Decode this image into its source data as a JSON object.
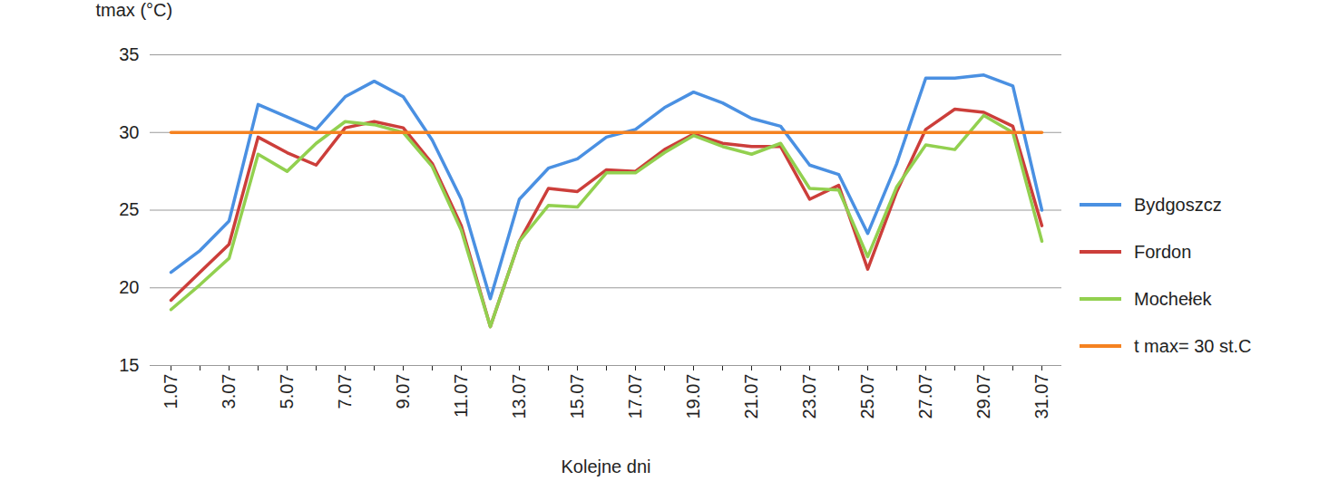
{
  "chart_data": {
    "type": "line",
    "x_label": "Kolejne dni",
    "y_label": "tmax (°C)",
    "categories": [
      "1.07",
      null,
      "3.07",
      null,
      "5.07",
      null,
      "7.07",
      null,
      "9.07",
      null,
      "11.07",
      null,
      "13.07",
      null,
      "15.07",
      null,
      "17.07",
      null,
      "19.07",
      null,
      "21.07",
      null,
      "23.07",
      null,
      "25.07",
      null,
      "27.07",
      null,
      "29.07",
      null,
      "31.07"
    ],
    "series": [
      {
        "name": "Bydgoszcz",
        "color": "#4a90e2",
        "values": [
          21,
          22.4,
          24.3,
          31.8,
          31,
          30.2,
          32.3,
          33.3,
          32.3,
          29.5,
          25.7,
          19.3,
          25.7,
          27.7,
          28.3,
          29.7,
          30.2,
          31.6,
          32.6,
          31.9,
          30.9,
          30.4,
          27.9,
          27.3,
          23.5,
          28,
          33.5,
          33.5,
          33.7,
          33,
          25
        ]
      },
      {
        "name": "Fordon",
        "color": "#cc3e3a",
        "values": [
          19.2,
          21,
          22.8,
          29.7,
          28.7,
          27.9,
          30.3,
          30.7,
          30.3,
          28,
          24,
          17.5,
          23,
          26.4,
          26.2,
          27.6,
          27.5,
          28.9,
          29.9,
          29.3,
          29.1,
          29.1,
          25.7,
          26.6,
          21.2,
          26.2,
          30.2,
          31.5,
          31.3,
          30.4,
          24
        ]
      },
      {
        "name": "Mochełek",
        "color": "#92d04f",
        "values": [
          18.6,
          20.2,
          21.9,
          28.6,
          27.5,
          29.3,
          30.7,
          30.5,
          30,
          27.8,
          23.7,
          17.5,
          23,
          25.3,
          25.2,
          27.4,
          27.4,
          28.7,
          29.8,
          29.1,
          28.6,
          29.3,
          26.4,
          26.3,
          22,
          26.5,
          29.2,
          28.9,
          31.1,
          30,
          23
        ]
      },
      {
        "name": "t max= 30 st.C",
        "color": "#f58220",
        "values": [
          30,
          30,
          30,
          30,
          30,
          30,
          30,
          30,
          30,
          30,
          30,
          30,
          30,
          30,
          30,
          30,
          30,
          30,
          30,
          30,
          30,
          30,
          30,
          30,
          30,
          30,
          30,
          30,
          30,
          30,
          30
        ]
      }
    ],
    "ylim": [
      15,
      35
    ],
    "yticks": [
      15,
      20,
      25,
      30,
      35
    ],
    "grid": true,
    "legend": "right"
  }
}
